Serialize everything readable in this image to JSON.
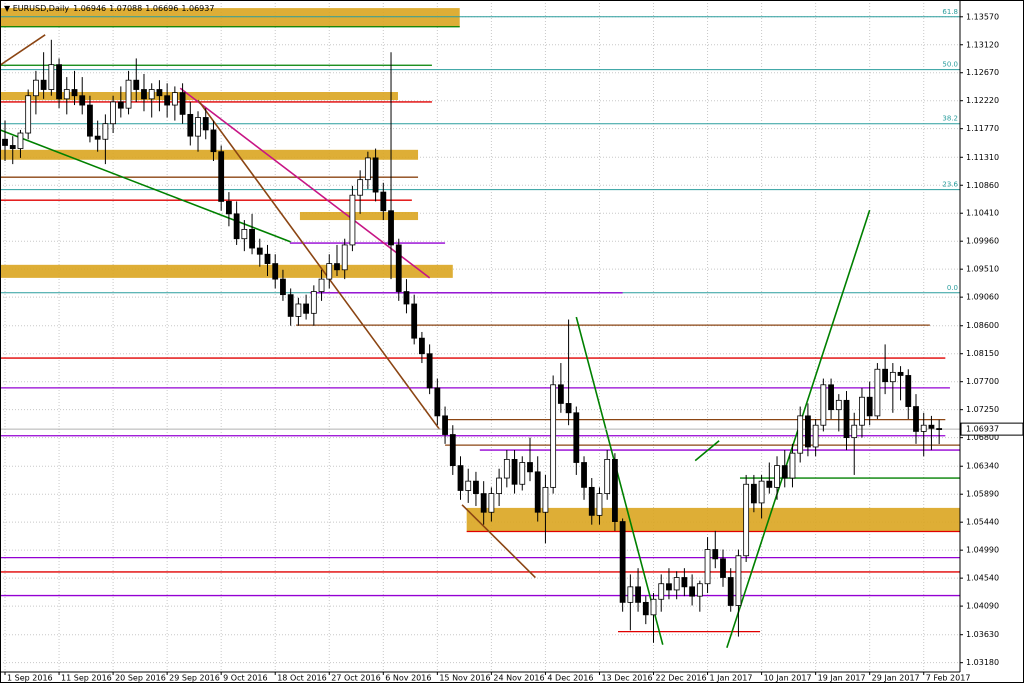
{
  "chart_data": {
    "type": "candlestick",
    "title": "EURUSD,Daily",
    "xlim": [
      -0.65,
      123.7
    ],
    "ylim": [
      1.0303,
      1.1384
    ],
    "grid": true,
    "up_color": "#ffffff",
    "down_color": "#000000",
    "xticks": [
      {
        "value": 0,
        "label": "1 Sep 2016"
      },
      {
        "value": 7,
        "label": "11 Sep 2016"
      },
      {
        "value": 14,
        "label": "20 Sep 2016"
      },
      {
        "value": 21,
        "label": "29 Sep 2016"
      },
      {
        "value": 28,
        "label": "9 Oct 2016"
      },
      {
        "value": 35,
        "label": "18 Oct 2016"
      },
      {
        "value": 42,
        "label": "27 Oct 2016"
      },
      {
        "value": 49,
        "label": "6 Nov 2016"
      },
      {
        "value": 56,
        "label": "15 Nov 2016"
      },
      {
        "value": 63,
        "label": "24 Nov 2016"
      },
      {
        "value": 70,
        "label": "4 Dec 2016"
      },
      {
        "value": 77,
        "label": "13 Dec 2016"
      },
      {
        "value": 84,
        "label": "22 Dec 2016"
      },
      {
        "value": 91,
        "label": "1 Jan 2017"
      },
      {
        "value": 98,
        "label": "10 Jan 2017"
      },
      {
        "value": 105,
        "label": "19 Jan 2017"
      },
      {
        "value": 112,
        "label": "29 Jan 2017"
      },
      {
        "value": 119,
        "label": "7 Feb 2017"
      }
    ],
    "yticks": [
      {
        "value": 1.1357,
        "label": "1.13570"
      },
      {
        "value": 1.1312,
        "label": "1.13120"
      },
      {
        "value": 1.1267,
        "label": "1.12670"
      },
      {
        "value": 1.1222,
        "label": "1.12220"
      },
      {
        "value": 1.1177,
        "label": "1.11770"
      },
      {
        "value": 1.1131,
        "label": "1.11310"
      },
      {
        "value": 1.1086,
        "label": "1.10860"
      },
      {
        "value": 1.1041,
        "label": "1.10410"
      },
      {
        "value": 1.0996,
        "label": "1.09960"
      },
      {
        "value": 1.0951,
        "label": "1.09510"
      },
      {
        "value": 1.0906,
        "label": "1.09060"
      },
      {
        "value": 1.086,
        "label": "1.08600"
      },
      {
        "value": 1.0815,
        "label": "1.08150"
      },
      {
        "value": 1.077,
        "label": "1.07700"
      },
      {
        "value": 1.0725,
        "label": "1.07250"
      },
      {
        "value": 1.068,
        "label": "1.06800"
      },
      {
        "value": 1.0634,
        "label": "1.06340"
      },
      {
        "value": 1.0589,
        "label": "1.05890"
      },
      {
        "value": 1.0544,
        "label": "1.05440"
      },
      {
        "value": 1.0499,
        "label": "1.04990"
      },
      {
        "value": 1.0454,
        "label": "1.04540"
      },
      {
        "value": 1.0409,
        "label": "1.04090"
      },
      {
        "value": 1.0363,
        "label": "1.03630"
      },
      {
        "value": 1.0318,
        "label": "1.03180"
      }
    ],
    "candles": [
      [
        1.116,
        1.119,
        1.1125,
        1.115
      ],
      [
        1.115,
        1.1165,
        1.112,
        1.1145
      ],
      [
        1.1145,
        1.1175,
        1.113,
        1.117
      ],
      [
        1.117,
        1.124,
        1.116,
        1.123
      ],
      [
        1.123,
        1.127,
        1.12,
        1.1255
      ],
      [
        1.1255,
        1.13,
        1.1225,
        1.124
      ],
      [
        1.124,
        1.132,
        1.123,
        1.128
      ],
      [
        1.128,
        1.129,
        1.121,
        1.1225
      ],
      [
        1.1225,
        1.126,
        1.12,
        1.124
      ],
      [
        1.124,
        1.127,
        1.1215,
        1.123
      ],
      [
        1.123,
        1.126,
        1.12,
        1.1215
      ],
      [
        1.1215,
        1.123,
        1.1155,
        1.1165
      ],
      [
        1.1165,
        1.119,
        1.114,
        1.116
      ],
      [
        1.116,
        1.12,
        1.112,
        1.1185
      ],
      [
        1.1185,
        1.123,
        1.117,
        1.122
      ],
      [
        1.122,
        1.1245,
        1.1195,
        1.121
      ],
      [
        1.121,
        1.127,
        1.12,
        1.1255
      ],
      [
        1.1255,
        1.129,
        1.122,
        1.124
      ],
      [
        1.124,
        1.1265,
        1.1205,
        1.1225
      ],
      [
        1.1225,
        1.125,
        1.1195,
        1.124
      ],
      [
        1.124,
        1.1255,
        1.1205,
        1.123
      ],
      [
        1.123,
        1.125,
        1.1195,
        1.1215
      ],
      [
        1.1215,
        1.1245,
        1.119,
        1.1235
      ],
      [
        1.1235,
        1.125,
        1.1185,
        1.12
      ],
      [
        1.12,
        1.122,
        1.115,
        1.1165
      ],
      [
        1.1165,
        1.1205,
        1.114,
        1.1195
      ],
      [
        1.1195,
        1.121,
        1.116,
        1.1175
      ],
      [
        1.1175,
        1.119,
        1.1125,
        1.114
      ],
      [
        1.114,
        1.115,
        1.1045,
        1.106
      ],
      [
        1.106,
        1.1075,
        1.102,
        1.104
      ],
      [
        1.104,
        1.106,
        1.099,
        1.1
      ],
      [
        1.1,
        1.103,
        1.098,
        1.1015
      ],
      [
        1.1015,
        1.104,
        1.0975,
        1.0985
      ],
      [
        1.0985,
        1.1,
        1.0955,
        1.0975
      ],
      [
        1.0975,
        1.099,
        1.094,
        1.096
      ],
      [
        1.096,
        1.0975,
        1.092,
        1.0935
      ],
      [
        1.0935,
        1.095,
        1.09,
        1.091
      ],
      [
        1.091,
        1.092,
        1.086,
        1.0875
      ],
      [
        1.0875,
        1.0905,
        1.086,
        1.0895
      ],
      [
        1.0895,
        1.091,
        1.087,
        1.088
      ],
      [
        1.088,
        1.0925,
        1.086,
        1.0915
      ],
      [
        1.0915,
        1.095,
        1.09,
        1.0935
      ],
      [
        1.0935,
        1.0975,
        1.092,
        1.096
      ],
      [
        1.096,
        1.099,
        1.094,
        1.095
      ],
      [
        1.095,
        1.1,
        1.0935,
        1.099
      ],
      [
        1.099,
        1.1085,
        1.098,
        1.107
      ],
      [
        1.107,
        1.111,
        1.104,
        1.1095
      ],
      [
        1.1095,
        1.114,
        1.108,
        1.113
      ],
      [
        1.113,
        1.1145,
        1.106,
        1.1075
      ],
      [
        1.1075,
        1.109,
        1.103,
        1.1045
      ],
      [
        1.1045,
        1.13,
        1.0935,
        1.099
      ],
      [
        1.099,
        1.1,
        1.09,
        1.0915
      ],
      [
        1.0915,
        1.0935,
        1.088,
        1.0895
      ],
      [
        1.0895,
        1.091,
        1.083,
        1.084
      ],
      [
        1.084,
        1.085,
        1.08,
        1.0815
      ],
      [
        1.0815,
        1.083,
        1.075,
        1.076
      ],
      [
        1.076,
        1.0775,
        1.07,
        1.0715
      ],
      [
        1.0715,
        1.073,
        1.067,
        1.0685
      ],
      [
        1.0685,
        1.07,
        1.062,
        1.0635
      ],
      [
        1.0635,
        1.065,
        1.058,
        1.0595
      ],
      [
        1.0595,
        1.063,
        1.0575,
        1.061
      ],
      [
        1.061,
        1.0625,
        1.057,
        1.059
      ],
      [
        1.059,
        1.061,
        1.054,
        1.056
      ],
      [
        1.056,
        1.06,
        1.0545,
        1.059
      ],
      [
        1.059,
        1.063,
        1.057,
        1.0615
      ],
      [
        1.0615,
        1.066,
        1.06,
        1.0645
      ],
      [
        1.0645,
        1.066,
        1.059,
        1.0605
      ],
      [
        1.0605,
        1.065,
        1.0595,
        1.064
      ],
      [
        1.064,
        1.068,
        1.061,
        1.0625
      ],
      [
        1.0625,
        1.065,
        1.0545,
        1.056
      ],
      [
        1.056,
        1.062,
        1.051,
        1.06
      ],
      [
        1.06,
        1.078,
        1.059,
        1.0765
      ],
      [
        1.0765,
        1.08,
        1.072,
        1.0735
      ],
      [
        1.0735,
        1.087,
        1.07,
        1.072
      ],
      [
        1.072,
        1.073,
        1.062,
        1.064
      ],
      [
        1.064,
        1.065,
        1.058,
        1.06
      ],
      [
        1.06,
        1.0615,
        1.054,
        1.0555
      ],
      [
        1.0555,
        1.06,
        1.054,
        1.059
      ],
      [
        1.059,
        1.066,
        1.058,
        1.0645
      ],
      [
        1.0645,
        1.0655,
        1.053,
        1.0545
      ],
      [
        1.0545,
        1.055,
        1.04,
        1.0415
      ],
      [
        1.0415,
        1.046,
        1.037,
        1.044
      ],
      [
        1.044,
        1.047,
        1.04,
        1.0415
      ],
      [
        1.0415,
        1.0425,
        1.038,
        1.0395
      ],
      [
        1.0395,
        1.043,
        1.035,
        1.042
      ],
      [
        1.042,
        1.046,
        1.04,
        1.0445
      ],
      [
        1.0445,
        1.047,
        1.042,
        1.0435
      ],
      [
        1.0435,
        1.0465,
        1.042,
        1.0455
      ],
      [
        1.0455,
        1.047,
        1.0425,
        1.044
      ],
      [
        1.044,
        1.046,
        1.041,
        1.0425
      ],
      [
        1.0425,
        1.045,
        1.04,
        1.0445
      ],
      [
        1.0445,
        1.052,
        1.043,
        1.05
      ],
      [
        1.05,
        1.053,
        1.047,
        1.0485
      ],
      [
        1.0485,
        1.05,
        1.044,
        1.0455
      ],
      [
        1.0455,
        1.047,
        1.04,
        1.041
      ],
      [
        1.041,
        1.05,
        1.036,
        1.049
      ],
      [
        1.049,
        1.062,
        1.048,
        1.0605
      ],
      [
        1.0605,
        1.062,
        1.056,
        1.0575
      ],
      [
        1.0575,
        1.062,
        1.055,
        1.061
      ],
      [
        1.061,
        1.064,
        1.059,
        1.06
      ],
      [
        1.06,
        1.065,
        1.058,
        1.0635
      ],
      [
        1.0635,
        1.066,
        1.06,
        1.0615
      ],
      [
        1.0615,
        1.067,
        1.06,
        1.0655
      ],
      [
        1.0655,
        1.073,
        1.064,
        1.0715
      ],
      [
        1.0715,
        1.0735,
        1.065,
        1.0665
      ],
      [
        1.0665,
        1.071,
        1.065,
        1.07
      ],
      [
        1.07,
        1.0775,
        1.069,
        1.0765
      ],
      [
        1.0765,
        1.0775,
        1.071,
        1.0725
      ],
      [
        1.0725,
        1.075,
        1.069,
        1.074
      ],
      [
        1.074,
        1.0755,
        1.066,
        1.068
      ],
      [
        1.068,
        1.072,
        1.062,
        1.07
      ],
      [
        1.07,
        1.076,
        1.068,
        1.0745
      ],
      [
        1.0745,
        1.077,
        1.07,
        1.0715
      ],
      [
        1.0715,
        1.08,
        1.071,
        1.079
      ],
      [
        1.079,
        1.083,
        1.075,
        1.077
      ],
      [
        1.077,
        1.08,
        1.072,
        1.0785
      ],
      [
        1.0785,
        1.0795,
        1.074,
        1.078
      ],
      [
        1.078,
        1.079,
        1.071,
        1.073
      ],
      [
        1.073,
        1.075,
        1.067,
        1.069
      ],
      [
        1.069,
        1.072,
        1.065,
        1.07
      ],
      [
        1.07,
        1.0715,
        1.066,
        1.0695
      ],
      [
        1.06946,
        1.07088,
        1.06696,
        1.06937
      ]
    ],
    "zones": [
      {
        "low": 1.1341,
        "high": 1.1371,
        "from": -0.65,
        "to": 58.9,
        "color": "#daa520"
      },
      {
        "low": 1.1223,
        "high": 1.1236,
        "from": -0.65,
        "to": 50.9,
        "color": "#daa520"
      },
      {
        "low": 1.1127,
        "high": 1.1143,
        "from": -0.65,
        "to": 53.5,
        "color": "#daa520"
      },
      {
        "low": 1.103,
        "high": 1.1043,
        "from": 38.2,
        "to": 53.5,
        "color": "#daa520"
      },
      {
        "low": 1.0937,
        "high": 1.0958,
        "from": -0.65,
        "to": 58.0,
        "color": "#daa520"
      },
      {
        "low": 1.0529,
        "high": 1.0567,
        "from": 59.8,
        "to": 123.7,
        "color": "#daa520"
      }
    ],
    "fib_levels": [
      {
        "price": 1.1357,
        "label": "61.8"
      },
      {
        "price": 1.1272,
        "label": "50.0"
      },
      {
        "price": 1.1185,
        "label": "38.2"
      },
      {
        "price": 1.1079,
        "label": "23.6"
      },
      {
        "price": 1.0913,
        "label": "0.0"
      }
    ],
    "fib_color": "#2a9d9d",
    "levels": [
      {
        "price": 1.1341,
        "from": -0.65,
        "to": 58.9,
        "color": "#008000"
      },
      {
        "price": 1.1279,
        "from": -0.65,
        "to": 55.3,
        "color": "#008000"
      },
      {
        "price": 1.122,
        "from": -0.65,
        "to": 55.3,
        "color": "#e00000"
      },
      {
        "price": 1.1099,
        "from": -0.65,
        "to": 53.5,
        "color": "#8b4513"
      },
      {
        "price": 1.1062,
        "from": -0.65,
        "to": 52.7,
        "color": "#e00000"
      },
      {
        "price": 1.0993,
        "from": 36.9,
        "to": 57.0,
        "color": "#9400d3"
      },
      {
        "price": 1.0913,
        "from": 39.5,
        "to": 80.0,
        "color": "#9400d3"
      },
      {
        "price": 1.0861,
        "from": 37.7,
        "to": 119.8,
        "color": "#8b4513"
      },
      {
        "price": 1.0808,
        "from": -0.65,
        "to": 121.8,
        "color": "#e00000"
      },
      {
        "price": 1.076,
        "from": -0.65,
        "to": 122.4,
        "color": "#9400d3"
      },
      {
        "price": 1.0709,
        "from": 57.0,
        "to": 121.8,
        "color": "#8b4513"
      },
      {
        "price": 1.0683,
        "from": -0.65,
        "to": 121.8,
        "color": "#9400d3"
      },
      {
        "price": 1.0668,
        "from": 57.0,
        "to": 123.7,
        "color": "#8b4513"
      },
      {
        "price": 1.066,
        "from": 61.5,
        "to": 123.7,
        "color": "#9400d3"
      },
      {
        "price": 1.0615,
        "from": 95.2,
        "to": 123.7,
        "color": "#008000"
      },
      {
        "price": 1.0529,
        "from": 59.8,
        "to": 123.7,
        "color": "#e00000"
      },
      {
        "price": 1.0487,
        "from": -0.65,
        "to": 123.7,
        "color": "#9400d3"
      },
      {
        "price": 1.0464,
        "from": -0.65,
        "to": 123.7,
        "color": "#e00000"
      },
      {
        "price": 1.0426,
        "from": -0.65,
        "to": 123.7,
        "color": "#9400d3"
      },
      {
        "price": 1.0368,
        "from": 79.4,
        "to": 97.8,
        "color": "#e00000"
      }
    ],
    "trend_lines": [
      {
        "points": [
          [
            -0.65,
            1.1279
          ],
          [
            5.2,
            1.1328
          ]
        ],
        "color": "#8b4513"
      },
      {
        "points": [
          [
            -0.65,
            1.1175
          ],
          [
            37.0,
            1.0995
          ]
        ],
        "color": "#008000"
      },
      {
        "points": [
          [
            22.7,
            1.1242
          ],
          [
            55.0,
            1.0937
          ]
        ],
        "color": "#c71585"
      },
      {
        "points": [
          [
            25.0,
            1.1223
          ],
          [
            56.3,
            1.0693
          ]
        ],
        "color": "#8b4513"
      },
      {
        "points": [
          [
            59.2,
            1.0572
          ],
          [
            68.7,
            1.0455
          ]
        ],
        "color": "#8b4513"
      },
      {
        "points": [
          [
            74.0,
            1.0874
          ],
          [
            85.2,
            1.0347
          ]
        ],
        "color": "#008000"
      },
      {
        "points": [
          [
            93.5,
            1.0342
          ],
          [
            112.0,
            1.1046
          ]
        ],
        "color": "#008000"
      },
      {
        "points": [
          [
            89.4,
            1.0643
          ],
          [
            92.5,
            1.0675
          ]
        ],
        "color": "#008000"
      }
    ],
    "bid_color": "#b0b0b0"
  }
}
